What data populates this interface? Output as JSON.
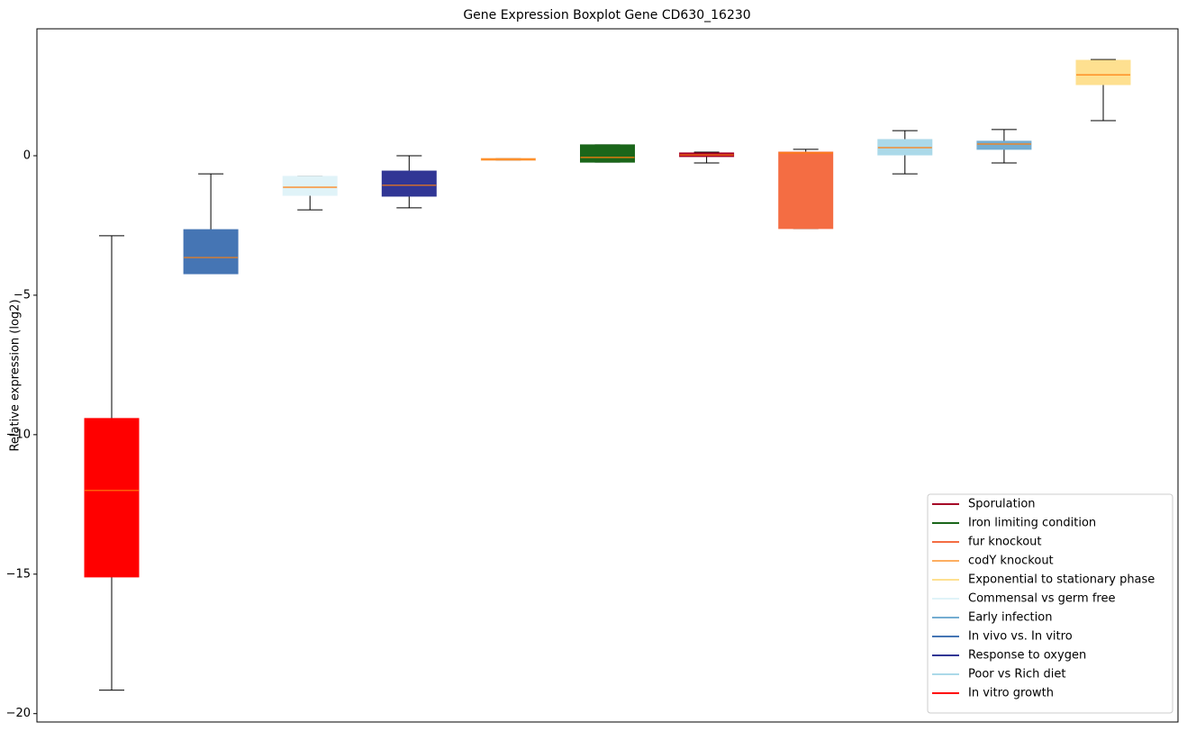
{
  "chart_data": {
    "type": "box",
    "title": "Gene Expression Boxplot Gene CD630_16230",
    "y_label": "Relative expression (log2)",
    "ylim": [
      -20.3,
      4.55
    ],
    "yticks": [
      {
        "value": -20,
        "label": "−20"
      },
      {
        "value": -15,
        "label": "−15"
      },
      {
        "value": -10,
        "label": "−10"
      },
      {
        "value": -5,
        "label": "−5"
      },
      0
    ],
    "median_color": "#ff7f0e",
    "boxes": [
      {
        "color": "#ff0000",
        "min": -19.16,
        "q1": -15.1,
        "median": -12.0,
        "q3": -9.42,
        "max": -2.87
      },
      {
        "color": "#4575b4",
        "min": -4.23,
        "q1": -4.23,
        "median": -3.65,
        "q3": -2.65,
        "max": -0.65
      },
      {
        "color": "#e0f3f8",
        "min": -1.94,
        "q1": -1.42,
        "median": -1.13,
        "q3": -0.74,
        "max": -0.74
      },
      {
        "color": "#313695",
        "min": -1.87,
        "q1": -1.45,
        "median": -1.06,
        "q3": -0.55,
        "max": 0
      },
      {
        "color": "#fdae61",
        "min": -0.16,
        "q1": -0.16,
        "median": -0.13,
        "q3": -0.1,
        "max": -0.1
      },
      {
        "color": "#1a661a",
        "min": -0.23,
        "q1": -0.23,
        "median": -0.06,
        "q3": 0.39,
        "max": 0.39
      },
      {
        "color": "#a50026",
        "min": -0.26,
        "q1": -0.03,
        "median": 0.03,
        "q3": 0.1,
        "max": 0.13
      },
      {
        "color": "#f46d43",
        "min": -2.61,
        "q1": -2.61,
        "median": 0.1,
        "q3": 0.13,
        "max": 0.23
      },
      {
        "color": "#abd9e9",
        "min": -0.65,
        "q1": 0.03,
        "median": 0.29,
        "q3": 0.58,
        "max": 0.9
      },
      {
        "color": "#74add1",
        "min": -0.26,
        "q1": 0.23,
        "median": 0.42,
        "q3": 0.52,
        "max": 0.94
      },
      {
        "color": "#fee090",
        "min": 1.26,
        "q1": 2.55,
        "median": 2.9,
        "q3": 3.42,
        "max": 3.45
      }
    ],
    "legend": [
      {
        "name": "Sporulation",
        "color": "#a50026"
      },
      {
        "name": "Iron limiting condition",
        "color": "#1a661a"
      },
      {
        "name": "fur knockout",
        "color": "#f46d43"
      },
      {
        "name": "codY knockout",
        "color": "#fdae61"
      },
      {
        "name": "Exponential to stationary phase",
        "color": "#fee090"
      },
      {
        "name": "Commensal vs germ free",
        "color": "#e0f3f8"
      },
      {
        "name": "Early infection",
        "color": "#74add1"
      },
      {
        "name": "In vivo vs. In vitro",
        "color": "#4575b4"
      },
      {
        "name": "Response to oxygen",
        "color": "#313695"
      },
      {
        "name": "Poor vs Rich diet",
        "color": "#abd9e9"
      },
      {
        "name": "In vitro growth",
        "color": "#ff0000"
      }
    ],
    "legend_position": "lower right"
  }
}
